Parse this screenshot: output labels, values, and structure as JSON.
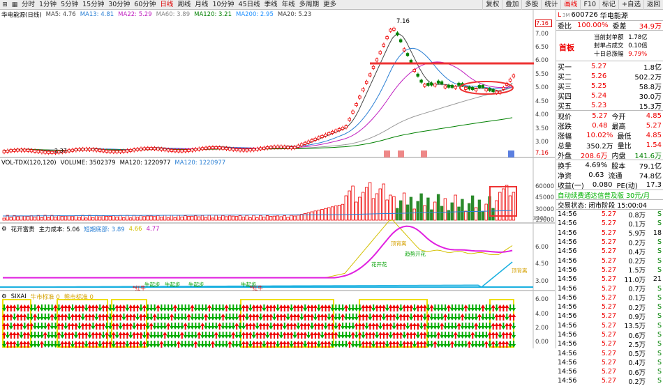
{
  "toolbar": {
    "periods": [
      "分时",
      "1分钟",
      "5分钟",
      "15分钟",
      "30分钟",
      "60分钟",
      "日线",
      "周线",
      "月线",
      "10分钟",
      "45日线",
      "季线",
      "年线",
      "多周期",
      "更多"
    ],
    "active_period": "日线",
    "right_items": [
      "复权",
      "叠加",
      "多股",
      "统计",
      "F10",
      "标记",
      "+自选",
      "返回"
    ],
    "right_items_2": [
      "画线",
      "F10",
      "标记",
      "+自选",
      "返回"
    ]
  },
  "main_panel": {
    "stock_name": "华电能源(日线)",
    "ma": [
      {
        "label": "MA5: 4.76",
        "color": "#444444"
      },
      {
        "label": "MA13: 4.81",
        "color": "#2a7fd4"
      },
      {
        "label": "MA22: 5.29",
        "color": "#c020c0"
      },
      {
        "label": "MA60: 3.89",
        "color": "#888888"
      },
      {
        "label": "MA120: 3.21",
        "color": "#008000"
      },
      {
        "label": "MA200: 2.95",
        "color": "#1e90ff"
      },
      {
        "label": "MA20: 5.23",
        "color": "#444444"
      }
    ],
    "high_label": "7.16",
    "low_label": "2.37",
    "right_value_label": "7.16",
    "axis": [
      "7.00",
      "6.50",
      "6.00",
      "5.50",
      "5.00",
      "4.50",
      "4.00",
      "3.50",
      "3.00",
      "2.50"
    ],
    "event_labels": [
      "涨",
      "跌",
      "榜",
      "财"
    ]
  },
  "volume_panel": {
    "title": "VOL-TDX(120,120)",
    "volume": "VOLUME: 3502379",
    "ma120": "MA120: 1220977",
    "ma120b": "MA120: 1220977",
    "axis": [
      "60000",
      "45000",
      "30000",
      "15000"
    ],
    "unit": "X100"
  },
  "indicator_panel": {
    "title": "花开富贵",
    "cost": "主力成本: 5.06",
    "bottom": "短期底部: 3.89",
    "v1": "4.66",
    "v2": "4.77",
    "axis": [
      "6.00",
      "4.50",
      "3.00"
    ],
    "annotations": [
      "牛起步",
      "牛起步",
      "牛起步",
      "牛起步",
      "*红牛",
      "*红牛",
      "花开花",
      "趋势开花",
      "顶背离",
      "顶背离"
    ]
  },
  "sixai_panel": {
    "title": "SIXAI",
    "t1": "牛市标准 0",
    "t2": "熊市标准 0",
    "axis": [
      "6.00",
      "4.00",
      "2.00",
      "0.00"
    ]
  },
  "quote": {
    "code": "600726",
    "name": "华电能源",
    "l_label": "L",
    "weibi_label": "委比",
    "weibi": "100.00%",
    "weicha_label": "委差",
    "weicha": "34.9万",
    "seal_lines": [
      {
        "k": "当前封单额",
        "v": "1.78亿"
      },
      {
        "k": "封单占成交",
        "v": "0.10倍"
      },
      {
        "k": "十日总涨幅",
        "v": "9.79%"
      }
    ],
    "shouban": "首板",
    "buy": [
      {
        "k": "买一",
        "p": "5.27",
        "v": "1.8亿"
      },
      {
        "k": "买二",
        "p": "5.26",
        "v": "502.2万"
      },
      {
        "k": "买三",
        "p": "5.25",
        "v": "58.8万"
      },
      {
        "k": "买四",
        "p": "5.24",
        "v": "30.0万"
      },
      {
        "k": "买五",
        "p": "5.23",
        "v": "15.3万"
      }
    ],
    "stats": [
      {
        "k1": "现价",
        "v1": "5.27",
        "k2": "今开",
        "v2": "4.85",
        "c1": "red",
        "c2": "red"
      },
      {
        "k1": "涨跌",
        "v1": "0.48",
        "k2": "最高",
        "v2": "5.27",
        "c1": "red",
        "c2": "red"
      },
      {
        "k1": "涨幅",
        "v1": "10.02%",
        "k2": "最低",
        "v2": "4.85",
        "c1": "red",
        "c2": "red"
      },
      {
        "k1": "总量",
        "v1": "350.2万",
        "k2": "量比",
        "v2": "1.54",
        "c1": "blk",
        "c2": "red"
      },
      {
        "k1": "外盘",
        "v1": "208.6万",
        "k2": "内盘",
        "v2": "141.6万",
        "c1": "red",
        "c2": "green"
      }
    ],
    "stats2": [
      {
        "k1": "换手",
        "v1": "4.69%",
        "k2": "股本",
        "v2": "79.1亿"
      },
      {
        "k1": "净资",
        "v1": "0.63",
        "k2": "流通",
        "v2": "74.8亿"
      },
      {
        "k1": "收益(一)",
        "v1": "0.080",
        "k2": "PE(动)",
        "v2": "17.3"
      }
    ],
    "banner": "自动续费通达信普及版 30元/月",
    "status": "交易状态: 闭市阶段 15:00:04",
    "ticks": [
      {
        "t": "14:56",
        "p": "5.27",
        "v": "0.8万",
        "s": "S"
      },
      {
        "t": "14:56",
        "p": "5.27",
        "v": "0.1万",
        "s": "S"
      },
      {
        "t": "14:56",
        "p": "5.27",
        "v": "5.9万",
        "s": "18"
      },
      {
        "t": "14:56",
        "p": "5.27",
        "v": "0.2万",
        "s": "S"
      },
      {
        "t": "14:56",
        "p": "5.27",
        "v": "0.4万",
        "s": "S"
      },
      {
        "t": "14:56",
        "p": "5.27",
        "v": "0.2万",
        "s": "S"
      },
      {
        "t": "14:56",
        "p": "5.27",
        "v": "1.5万",
        "s": "S"
      },
      {
        "t": "14:56",
        "p": "5.27",
        "v": "11.0万",
        "s": "21"
      },
      {
        "t": "14:56",
        "p": "5.27",
        "v": "0.7万",
        "s": "S"
      },
      {
        "t": "14:56",
        "p": "5.27",
        "v": "0.1万",
        "s": "S"
      },
      {
        "t": "14:56",
        "p": "5.27",
        "v": "0.2万",
        "s": "S"
      },
      {
        "t": "14:56",
        "p": "5.27",
        "v": "0.9万",
        "s": "S"
      },
      {
        "t": "14:56",
        "p": "5.27",
        "v": "13.5万",
        "s": "S"
      },
      {
        "t": "14:56",
        "p": "5.27",
        "v": "0.6万",
        "s": "S"
      },
      {
        "t": "14:56",
        "p": "5.27",
        "v": "2.5万",
        "s": "S"
      },
      {
        "t": "14:56",
        "p": "5.27",
        "v": "0.5万",
        "s": "S"
      },
      {
        "t": "14:56",
        "p": "5.27",
        "v": "0.4万",
        "s": "S"
      },
      {
        "t": "14:56",
        "p": "5.27",
        "v": "0.6万",
        "s": "S"
      },
      {
        "t": "14:56",
        "p": "5.27",
        "v": "0.2万",
        "s": "S"
      }
    ]
  }
}
